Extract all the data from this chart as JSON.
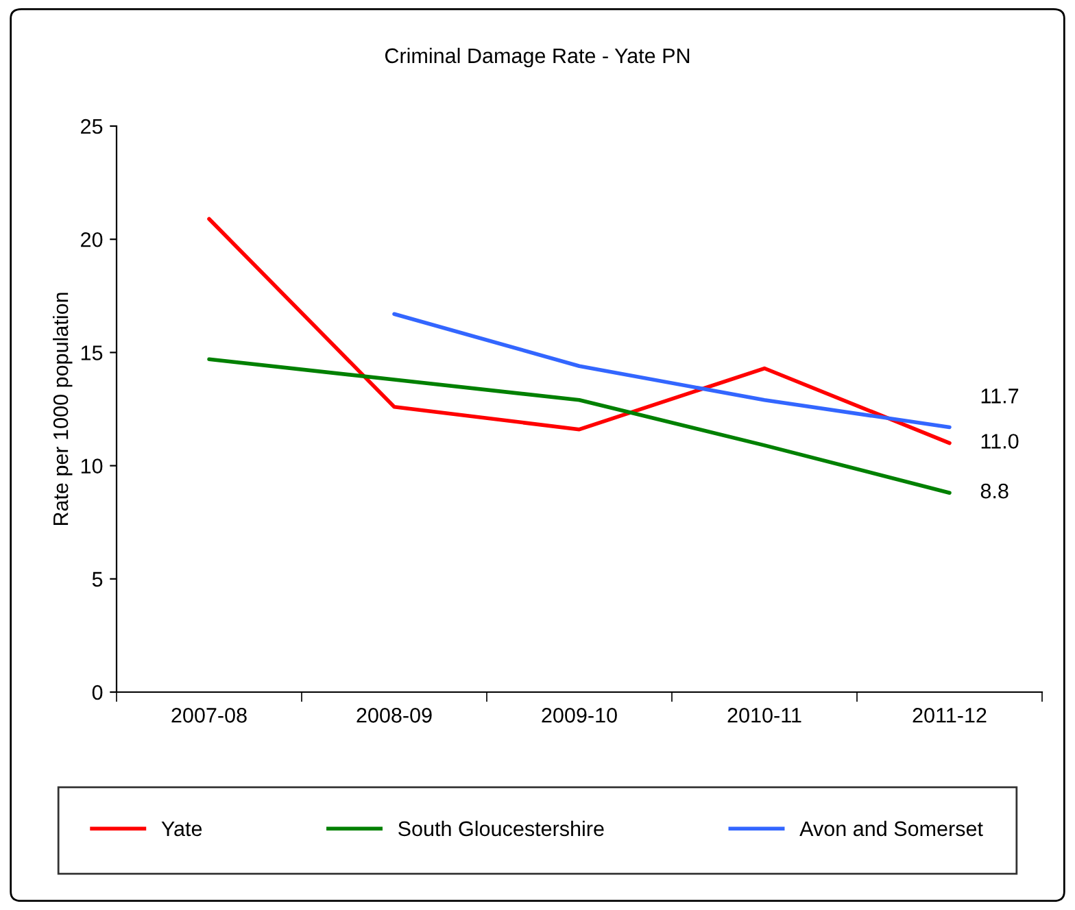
{
  "chart_data": {
    "type": "line",
    "title": "Criminal Damage Rate - Yate PN",
    "ylabel": "Rate per 1000 population",
    "categories": [
      "2007-08",
      "2008-09",
      "2009-10",
      "2010-11",
      "2011-12"
    ],
    "ylim": [
      0,
      25
    ],
    "yticks": [
      0,
      5,
      10,
      15,
      20,
      25
    ],
    "grid": false,
    "legend": "bottom",
    "marker": "none",
    "line_style": "solid",
    "series": [
      {
        "name": "Yate",
        "color": "#ff0000",
        "values": [
          20.9,
          12.6,
          11.6,
          14.3,
          11.0
        ],
        "value_labels": [
          null,
          null,
          null,
          null,
          "11.0"
        ]
      },
      {
        "name": "South Gloucestershire",
        "color": "#008000",
        "values": [
          14.7,
          13.8,
          12.9,
          10.9,
          8.8
        ],
        "value_labels": [
          null,
          null,
          null,
          null,
          "8.8"
        ]
      },
      {
        "name": "Avon and Somerset",
        "color": "#3366ff",
        "values": [
          null,
          16.7,
          14.4,
          12.9,
          11.7
        ],
        "value_labels": [
          null,
          null,
          null,
          null,
          "11.7"
        ]
      }
    ]
  }
}
